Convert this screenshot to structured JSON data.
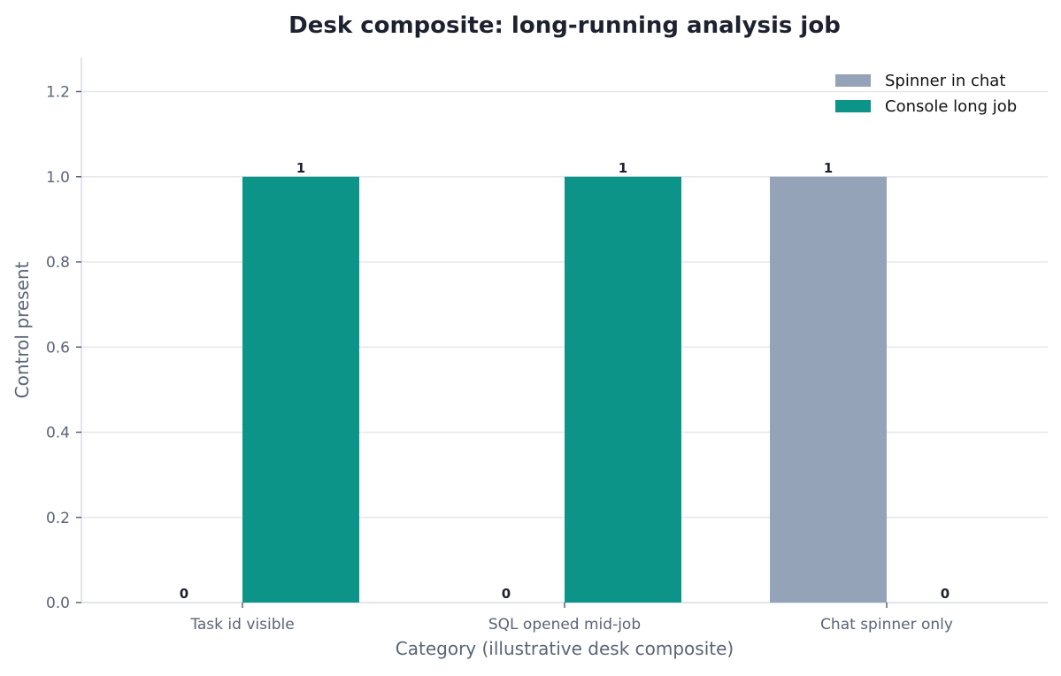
{
  "chart_data": {
    "type": "bar",
    "title": "Desk composite: long-running analysis job",
    "xlabel": "Category (illustrative desk composite)",
    "ylabel": "Control present",
    "categories": [
      "Task id visible",
      "SQL opened mid-job",
      "Chat spinner only"
    ],
    "series": [
      {
        "name": "Spinner in chat",
        "values": [
          0,
          0,
          1
        ],
        "labels": [
          "0",
          "0",
          "1"
        ],
        "color": "#94a3b8"
      },
      {
        "name": "Console long job",
        "values": [
          1,
          1,
          0
        ],
        "labels": [
          "1",
          "1",
          "0"
        ],
        "color": "#0d9488"
      }
    ],
    "ylim": [
      0,
      1.28
    ],
    "yticks": [
      0.0,
      0.2,
      0.4,
      0.6,
      0.8,
      1.0,
      1.2
    ],
    "ytick_labels": [
      "0.0",
      "0.2",
      "0.4",
      "0.6",
      "0.8",
      "1.0",
      "1.2"
    ],
    "grid": "y",
    "legend_position": "top-right",
    "colors": {
      "title": "#1e2230",
      "axis_text": "#5a6478",
      "grid": "#e5e7eb",
      "axis_line": "#d9dce3",
      "data_label": "#1e2230"
    }
  }
}
